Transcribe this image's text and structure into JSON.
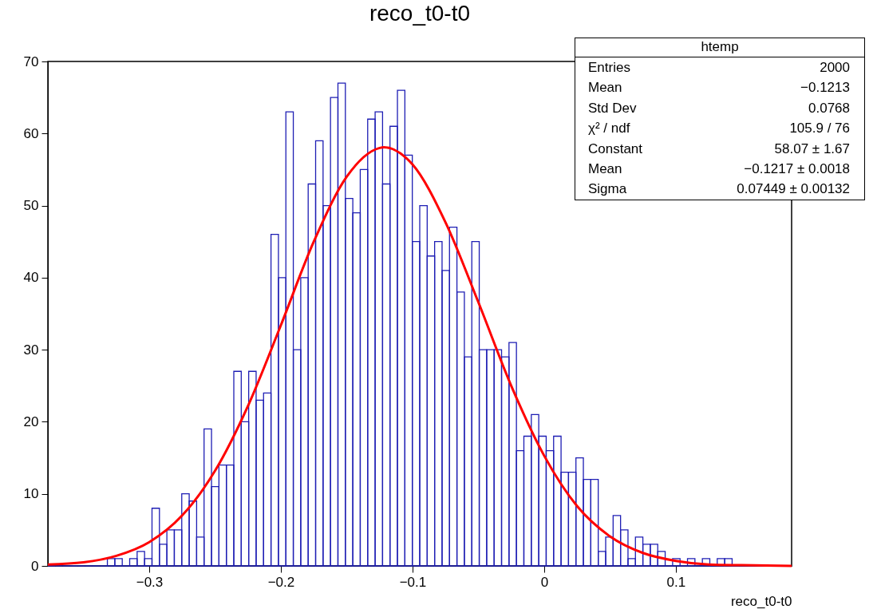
{
  "chart_data": {
    "type": "histogram",
    "title": "reco_t0-t0",
    "xlabel": "reco_t0-t0",
    "xlim": [
      -0.377,
      0.188
    ],
    "xticks": [
      {
        "value": -0.3,
        "label": "−0.3"
      },
      {
        "value": -0.2,
        "label": "−0.2"
      },
      {
        "value": -0.1,
        "label": "−0.1"
      },
      {
        "value": 0,
        "label": "0"
      },
      {
        "value": 0.1,
        "label": "0.1"
      }
    ],
    "ylim": [
      0,
      70
    ],
    "yticks": [
      0,
      10,
      20,
      30,
      40,
      50,
      60,
      70
    ],
    "series": [
      {
        "color": "#1e1eb4",
        "bins": [
          -0.377,
          -0.37135,
          -0.3657,
          -0.36005,
          -0.3544,
          -0.34875,
          -0.3431,
          -0.33745,
          -0.3318,
          -0.32615,
          -0.3205,
          -0.31485,
          -0.3092,
          -0.30355,
          -0.2979,
          -0.29225,
          -0.2866,
          -0.28095,
          -0.2753,
          -0.26965,
          -0.264,
          -0.25835,
          -0.2527,
          -0.24705,
          -0.2414,
          -0.23575,
          -0.2301,
          -0.22445,
          -0.2188,
          -0.21315,
          -0.2075,
          -0.20185,
          -0.1962,
          -0.19055,
          -0.1849,
          -0.17925,
          -0.1736,
          -0.16795,
          -0.1623,
          -0.15665,
          -0.151,
          -0.14535,
          -0.1397,
          -0.13405,
          -0.1284,
          -0.12275,
          -0.1171,
          -0.11145,
          -0.1058,
          -0.10015,
          -0.0945,
          -0.08885,
          -0.0832,
          -0.07755,
          -0.0719,
          -0.06625,
          -0.0606,
          -0.05495,
          -0.0493,
          -0.04365,
          -0.038,
          -0.03235,
          -0.0267,
          -0.02105,
          -0.0154,
          -0.00975,
          -0.0041,
          0.00155,
          0.0072,
          0.01285,
          0.0185,
          0.02415,
          0.0298,
          0.03545,
          0.0411,
          0.04675,
          0.0524,
          0.05805,
          0.0637,
          0.06935,
          0.075,
          0.08065,
          0.0863,
          0.09195,
          0.0976,
          0.10325,
          0.1089,
          0.11455,
          0.1202,
          0.12585,
          0.1315,
          0.13715,
          0.1428,
          0.14845,
          0.1541,
          0.15975,
          0.1654,
          0.17105,
          0.1767,
          0.18235,
          0.188
        ],
        "values": [
          0,
          0,
          0,
          0,
          0,
          0,
          0,
          0,
          1,
          1,
          0,
          1,
          2,
          1,
          8,
          3,
          5,
          5,
          10,
          9,
          4,
          19,
          11,
          14,
          14,
          27,
          20,
          27,
          23,
          24,
          46,
          40,
          63,
          30,
          40,
          53,
          59,
          50,
          65,
          67,
          51,
          49,
          55,
          62,
          63,
          53,
          61,
          66,
          57,
          45,
          50,
          43,
          45,
          41,
          47,
          38,
          29,
          45,
          30,
          30,
          30,
          29,
          31,
          16,
          18,
          21,
          18,
          16,
          18,
          13,
          13,
          15,
          12,
          12,
          2,
          4,
          7,
          5,
          1,
          4,
          3,
          3,
          2,
          0,
          1,
          0,
          1,
          0,
          1,
          0,
          1,
          1,
          0,
          0,
          0,
          0,
          0,
          0,
          0,
          0
        ]
      },
      {
        "type": "line",
        "color": "#ff0000",
        "x": [
          -0.377,
          -0.35,
          -0.325,
          -0.3,
          -0.275,
          -0.25,
          -0.225,
          -0.2,
          -0.175,
          -0.15,
          -0.125,
          -0.1217,
          -0.1,
          -0.075,
          -0.05,
          -0.025,
          0,
          0.025,
          0.05,
          0.075,
          0.1,
          0.125,
          0.15,
          0.188
        ],
        "values": [
          0.2,
          0.5,
          1.4,
          3.3,
          7.0,
          13.2,
          22.2,
          33.4,
          45.0,
          54.0,
          58.0,
          58.1,
          55.7,
          47.7,
          36.6,
          25.0,
          15.3,
          8.3,
          4.1,
          1.8,
          0.7,
          0.2,
          0.1,
          0.0
        ]
      }
    ],
    "annotations": [
      "htemp",
      "Entries",
      "2000",
      "Mean",
      "−0.1213",
      "Std Dev",
      "0.0768",
      "χ² / ndf",
      "105.9 / 76",
      "Constant",
      "58.07 ± 1.67",
      "Mean",
      "−0.1217 ± 0.0018",
      "Sigma",
      "0.07449 ± 0.00132"
    ]
  }
}
